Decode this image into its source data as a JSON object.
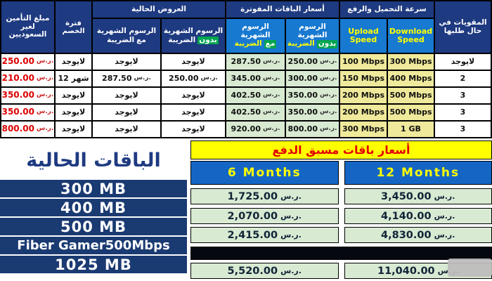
{
  "colors": {
    "header_navy": "#1e3a80",
    "bright_blue": "#1879d0",
    "green_highlight": "#00a550",
    "pale_green": "#d8ead2",
    "pale_yellow": "#efe99b",
    "price_red": "#dd0000",
    "prepaid_yellow": "#ffff00",
    "bottom_blue": "#1566c4",
    "band_navy": "#1a3a72"
  },
  "top_table": {
    "currency": "ر.س.",
    "headers": {
      "insurance": "مبلغ التأمين لغير السعوديين",
      "discount": "فترة الخصم",
      "offers": "العروض الحالية",
      "billed": "أسعار الباقات المفوترة",
      "speed": "سرعة التحميل والرفع",
      "boosters": "المقويات في حال طلبها",
      "monthly_fees": "الرسوم الشهرية",
      "with_word": "مع",
      "without_word": "بدون",
      "tax_word": "الضريبة",
      "upload": "Upload Speed",
      "download": "Download Speed"
    },
    "rows": [
      {
        "insurance": "250.00",
        "discount": "لايوجد",
        "offer_tax": "لايوجد",
        "offer_notax": "لايوجد",
        "billed_tax": "287.50",
        "billed_notax": "250.00",
        "upload": "100 Mbps",
        "download": "300 Mbps",
        "boosters": "لايوجد"
      },
      {
        "insurance": "210.00",
        "discount": "12 شهر",
        "offer_tax": "287.50",
        "offer_notax": "250.00",
        "billed_tax": "345.00",
        "billed_notax": "300.00",
        "upload": "150 Mbps",
        "download": "400 Mbps",
        "boosters": "2"
      },
      {
        "insurance": "350.00",
        "discount": "لايوجد",
        "offer_tax": "لايوجد",
        "offer_notax": "لايوجد",
        "billed_tax": "402.50",
        "billed_notax": "350.00",
        "upload": "200 Mbps",
        "download": "500 Mbps",
        "boosters": "3"
      },
      {
        "insurance": "350.00",
        "discount": "لايوجد",
        "offer_tax": "لايوجد",
        "offer_notax": "لايوجد",
        "billed_tax": "402.50",
        "billed_notax": "350.00",
        "upload": "200 Mbps",
        "download": "500 Mbps",
        "boosters": "3"
      },
      {
        "insurance": "800.00",
        "discount": "لايوجد",
        "offer_tax": "لايوجد",
        "offer_notax": "لايوجد",
        "billed_tax": "920.00",
        "billed_notax": "800.00",
        "upload": "300 Mbps",
        "download": "1 GB",
        "boosters": "3"
      }
    ]
  },
  "bottom": {
    "left": {
      "title": "الباقات الحالية",
      "packages": [
        "300 MB",
        "400 MB",
        "500 MB",
        "Fiber Gamer500Mbps",
        "1025 MB"
      ]
    },
    "right": {
      "title": "أسعار باقات مسبق الدفع",
      "col6": "6 Months",
      "col12": "12 Months",
      "currency": "ر.س.",
      "rows": [
        {
          "m6": "1,725.00",
          "m12": "3,450.00"
        },
        {
          "m6": "2,070.00",
          "m12": "4,140.00"
        },
        {
          "m6": "2,415.00",
          "m12": "4,830.00"
        },
        {
          "m6": "5,520.00",
          "m12": "11,040.00"
        }
      ]
    }
  }
}
